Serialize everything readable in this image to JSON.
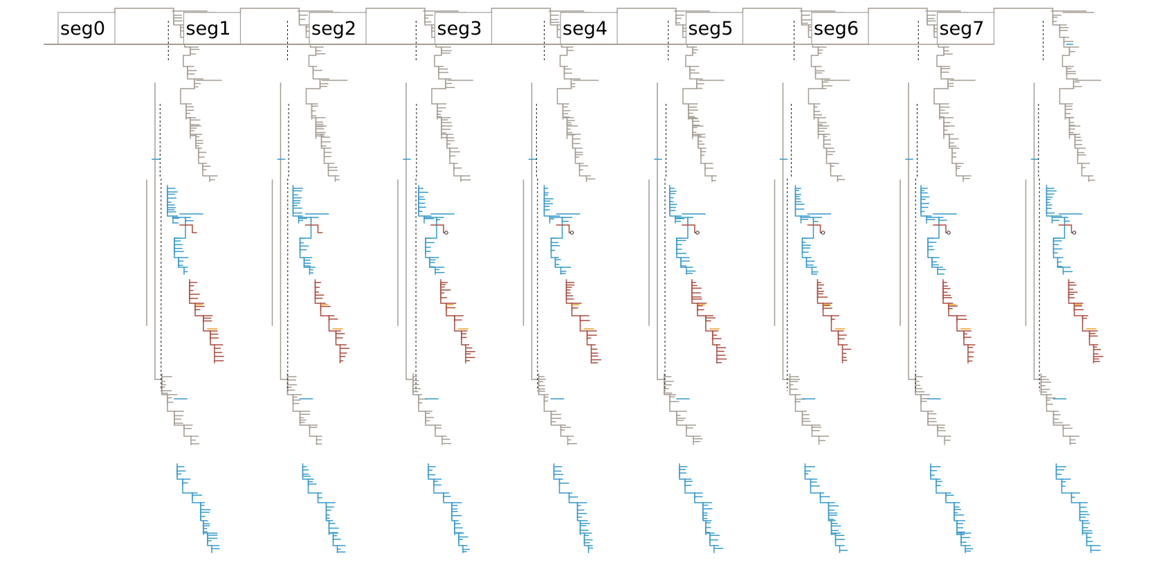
{
  "panels": [
    {
      "label": "seg0"
    },
    {
      "label": "seg1"
    },
    {
      "label": "seg2"
    },
    {
      "label": "seg3"
    },
    {
      "label": "seg4"
    },
    {
      "label": "seg5"
    },
    {
      "label": "seg6"
    },
    {
      "label": "seg7"
    }
  ],
  "colors": {
    "grey_lineage": "#a39c92",
    "blue_lineage": "#3399cc",
    "red_lineage": "#a94a3c",
    "orange_lineage": "#f0a020",
    "connector": "#111111"
  }
}
